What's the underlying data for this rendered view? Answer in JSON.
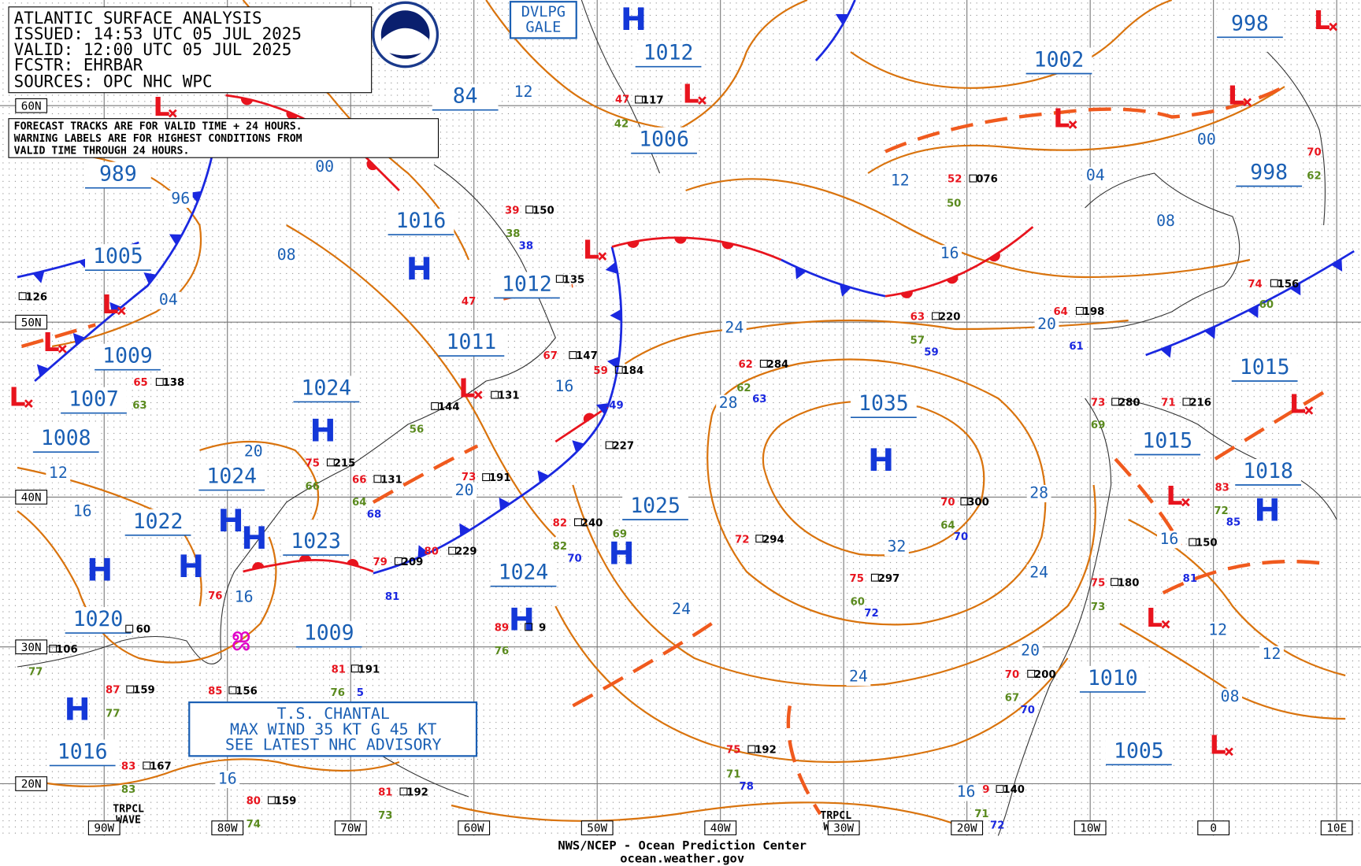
{
  "header": {
    "title": "ATLANTIC SURFACE ANALYSIS",
    "issued": "ISSUED: 14:53 UTC 05 JUL 2025",
    "valid": "VALID:  12:00 UTC 05 JUL 2025",
    "forecaster": "FCSTR:  EHRBAR",
    "sources": "SOURCES: OPC NHC WPC"
  },
  "note": [
    "FORECAST TRACKS ARE FOR VALID TIME + 24 HOURS.",
    "WARNING LABELS ARE FOR HIGHEST CONDITIONS FROM",
    "VALID TIME THROUGH 24 HOURS."
  ],
  "warnings": {
    "gale": [
      "DVLPG",
      "GALE"
    ]
  },
  "storm_box": [
    "T.S. CHANTAL",
    "MAX WIND 35 KT G 45 KT",
    "SEE LATEST NHC ADVISORY"
  ],
  "tropical_waves": [
    [
      "TRPCL",
      "WAVE"
    ],
    [
      "TRPCL",
      "WAVE"
    ]
  ],
  "footer": {
    "agency": "NWS/NCEP - Ocean Prediction Center",
    "url": "ocean.weather.gov"
  },
  "lat_labels": [
    "60N",
    "50N",
    "40N",
    "30N",
    "20N"
  ],
  "lon_labels": [
    "90W",
    "80W",
    "70W",
    "60W",
    "50W",
    "40W",
    "30W",
    "20W",
    "10W",
    "0",
    "10E"
  ],
  "pressure_labels": [
    "998",
    "1012",
    "1002",
    "84",
    "1006",
    "989",
    "998",
    "1016",
    "1005",
    "1012",
    "1011",
    "1009",
    "1024",
    "1015",
    "1007",
    "1035",
    "1008",
    "1015",
    "1024",
    "1018",
    "1025",
    "1022",
    "1023",
    "1024",
    "1020",
    "1009",
    "1010",
    "1005",
    "1016"
  ],
  "isobar_labels": [
    "12",
    "96",
    "00",
    "08",
    "04",
    "12",
    "04",
    "00",
    "08",
    "16",
    "24",
    "20",
    "16",
    "28",
    "20",
    "12",
    "16",
    "28",
    "32",
    "16",
    "24",
    "24",
    "12",
    "12",
    "20",
    "24",
    "08",
    "16",
    "16",
    "16",
    "20"
  ],
  "highs": [
    "H",
    "H",
    "H",
    "H",
    "H",
    "H",
    "H",
    "H",
    "H",
    "H",
    "H",
    "H"
  ],
  "lows": [
    "L",
    "L",
    "L",
    "L",
    "L",
    "L",
    "L",
    "L",
    "L",
    "L",
    "L",
    "L",
    "L",
    "L"
  ],
  "stations": {
    "black": [
      "150",
      "135",
      "147",
      "184",
      "227",
      "240",
      "131",
      "144",
      "191",
      "229",
      "209",
      "131",
      "215",
      "138",
      "126",
      "117",
      "076",
      "220",
      "284",
      "294",
      "297",
      "300",
      "198",
      "156",
      "280",
      "216",
      "150",
      "180",
      "200",
      "140",
      "192",
      "192",
      "159",
      "167",
      "159",
      "156",
      "191",
      "60",
      "106",
      "9"
    ],
    "red": [
      "39",
      "47",
      "47",
      "52",
      "63",
      "62",
      "72",
      "75",
      "70",
      "64",
      "74",
      "73",
      "71",
      "83",
      "75",
      "70",
      "9",
      "75",
      "81",
      "80",
      "83",
      "87",
      "85",
      "81",
      "80",
      "79",
      "75",
      "66",
      "65",
      "76",
      "82",
      "89",
      "70",
      "67",
      "59",
      "73"
    ],
    "blue": [
      "38",
      "49",
      "81",
      "68",
      "63",
      "59",
      "61",
      "72",
      "70",
      "70",
      "72",
      "78",
      "85",
      "81",
      "70",
      "5"
    ],
    "green": [
      "38",
      "42",
      "50",
      "57",
      "62",
      "63",
      "56",
      "64",
      "69",
      "60",
      "64",
      "73",
      "67",
      "71",
      "71",
      "73",
      "74",
      "83",
      "77",
      "77",
      "76",
      "82",
      "69",
      "76",
      "60",
      "62",
      "72",
      "66"
    ]
  }
}
